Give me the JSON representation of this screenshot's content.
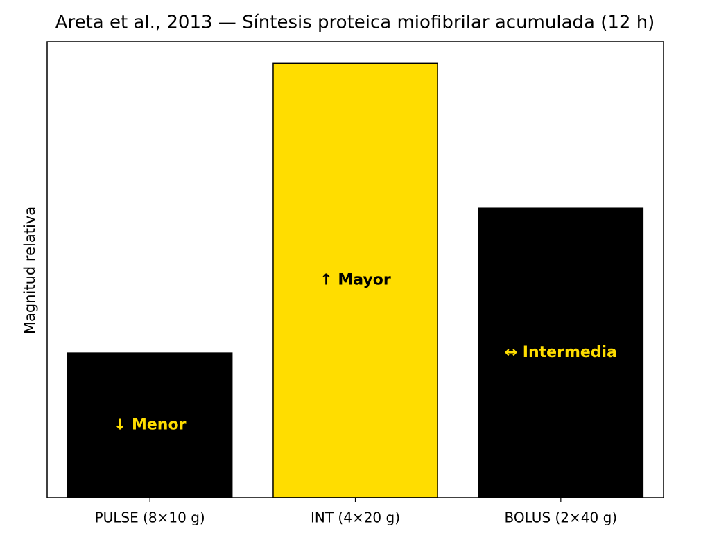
{
  "chart_data": {
    "type": "bar",
    "title": "Areta et al., 2013 — Síntesis proteica miofibrilar acumulada (12 h)",
    "ylabel": "Magnitud relativa",
    "categories": [
      "PULSE (8×10 g)",
      "INT (4×20 g)",
      "BOLUS (2×40 g)"
    ],
    "values": [
      1,
      3,
      2
    ],
    "colors": [
      "#000000",
      "#ffdd00",
      "#000000"
    ],
    "bar_labels": [
      "↓ Menor",
      "↑ Mayor",
      "↔ Intermedia"
    ],
    "bar_label_colors": [
      "#ffdd00",
      "#000000",
      "#ffdd00"
    ],
    "ylim": [
      0,
      3.15
    ]
  }
}
